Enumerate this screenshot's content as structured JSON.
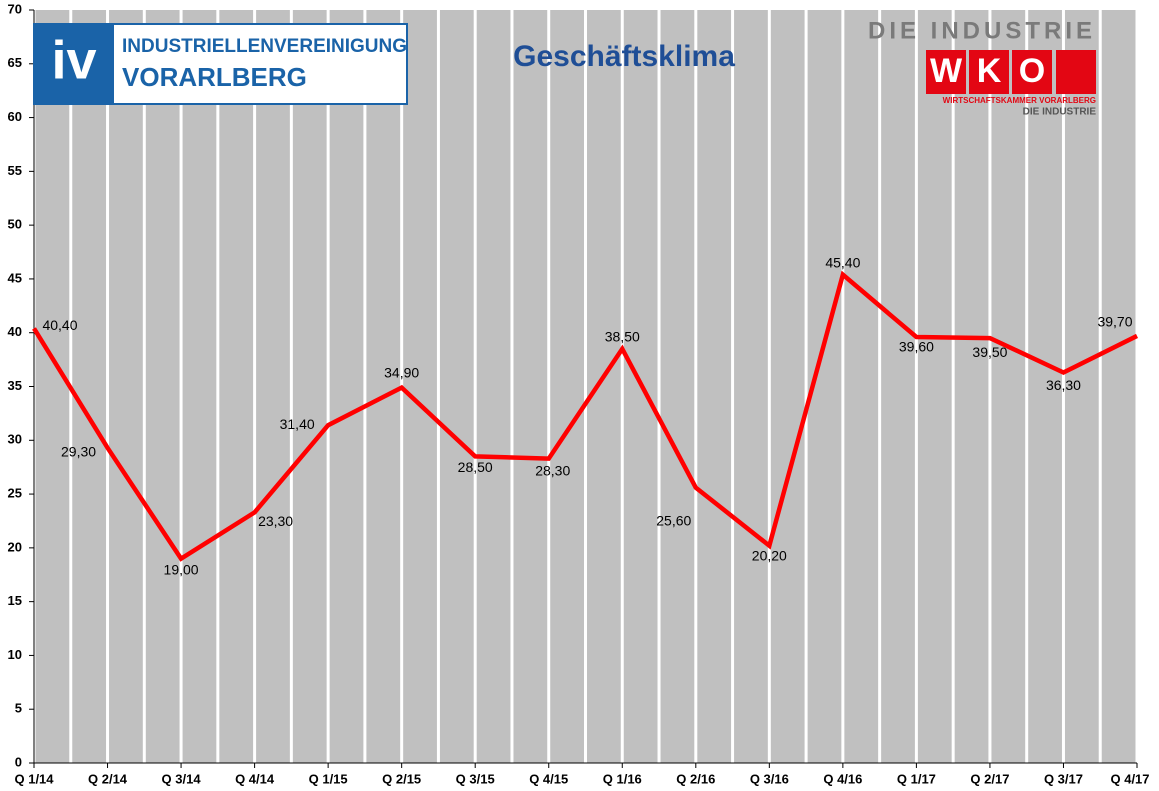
{
  "chart_data": {
    "type": "line",
    "title": "Geschäftsklima",
    "categories": [
      "Q 1/14",
      "Q 2/14",
      "Q 3/14",
      "Q 4/14",
      "Q 1/15",
      "Q 2/15",
      "Q 3/15",
      "Q 4/15",
      "Q 1/16",
      "Q 2/16",
      "Q 3/16",
      "Q 4/16",
      "Q 1/17",
      "Q 2/17",
      "Q 3/17",
      "Q 4/17"
    ],
    "series": [
      {
        "color": "#ff0000",
        "values": [
          40.4,
          29.3,
          19,
          23.3,
          31.4,
          34.9,
          28.5,
          28.3,
          38.5,
          25.6,
          20.2,
          45.4,
          39.6,
          39.5,
          36.3,
          39.7
        ],
        "value_labels": [
          "40,40",
          "29,30",
          "19,00",
          "23,30",
          "31,40",
          "34,90",
          "28,50",
          "28,30",
          "38,50",
          "25,60",
          "20,20",
          "45,40",
          "39,60",
          "39,50",
          "36,30",
          "39,70"
        ]
      }
    ],
    "ylim": [
      0,
      70
    ],
    "yticks": [
      0,
      5,
      10,
      15,
      20,
      25,
      30,
      35,
      40,
      45,
      50,
      55,
      60,
      65,
      70
    ],
    "grid": true
  },
  "logos": {
    "iv": {
      "mark": "iv",
      "line1": "INDUSTRIELLENVEREINIGUNG",
      "line2": "VORARLBERG"
    },
    "wko": {
      "top": "DIE INDUSTRIE",
      "letters": [
        "W",
        "K",
        "O"
      ],
      "line1": "WIRTSCHAFTSKAMMER VORARLBERG",
      "line2": "DIE INDUSTRIE"
    }
  }
}
